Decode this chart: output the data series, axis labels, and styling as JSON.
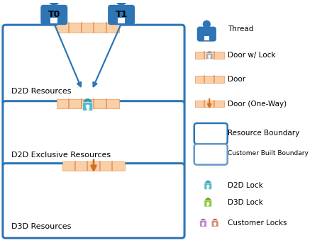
{
  "bg_color": "#ffffff",
  "box_edge_color": "#2E75B6",
  "d2d_res_label": "D2D Resources",
  "d2d_excl_label": "D2D Exclusive Resources",
  "d3d_res_label": "D3D Resources",
  "thread_color": "#2E75B6",
  "door_color": "#F9CFA6",
  "door_stripe_color": "#E8965A",
  "door_arrow_color": "#D07020",
  "lock_teal": "#55BBCC",
  "lock_teal_shackle": "#3399AA",
  "lock_gray": "#AAAAAA",
  "lock_gray_shackle": "#888888",
  "lock_green": "#88CC33",
  "lock_green_shackle": "#669922",
  "lock_purple": "#BB88CC",
  "lock_purple_shackle": "#9966AA",
  "lock_salmon": "#DD8877",
  "lock_salmon_shackle": "#BB6655",
  "cust_boundary_color": "#6699CC"
}
